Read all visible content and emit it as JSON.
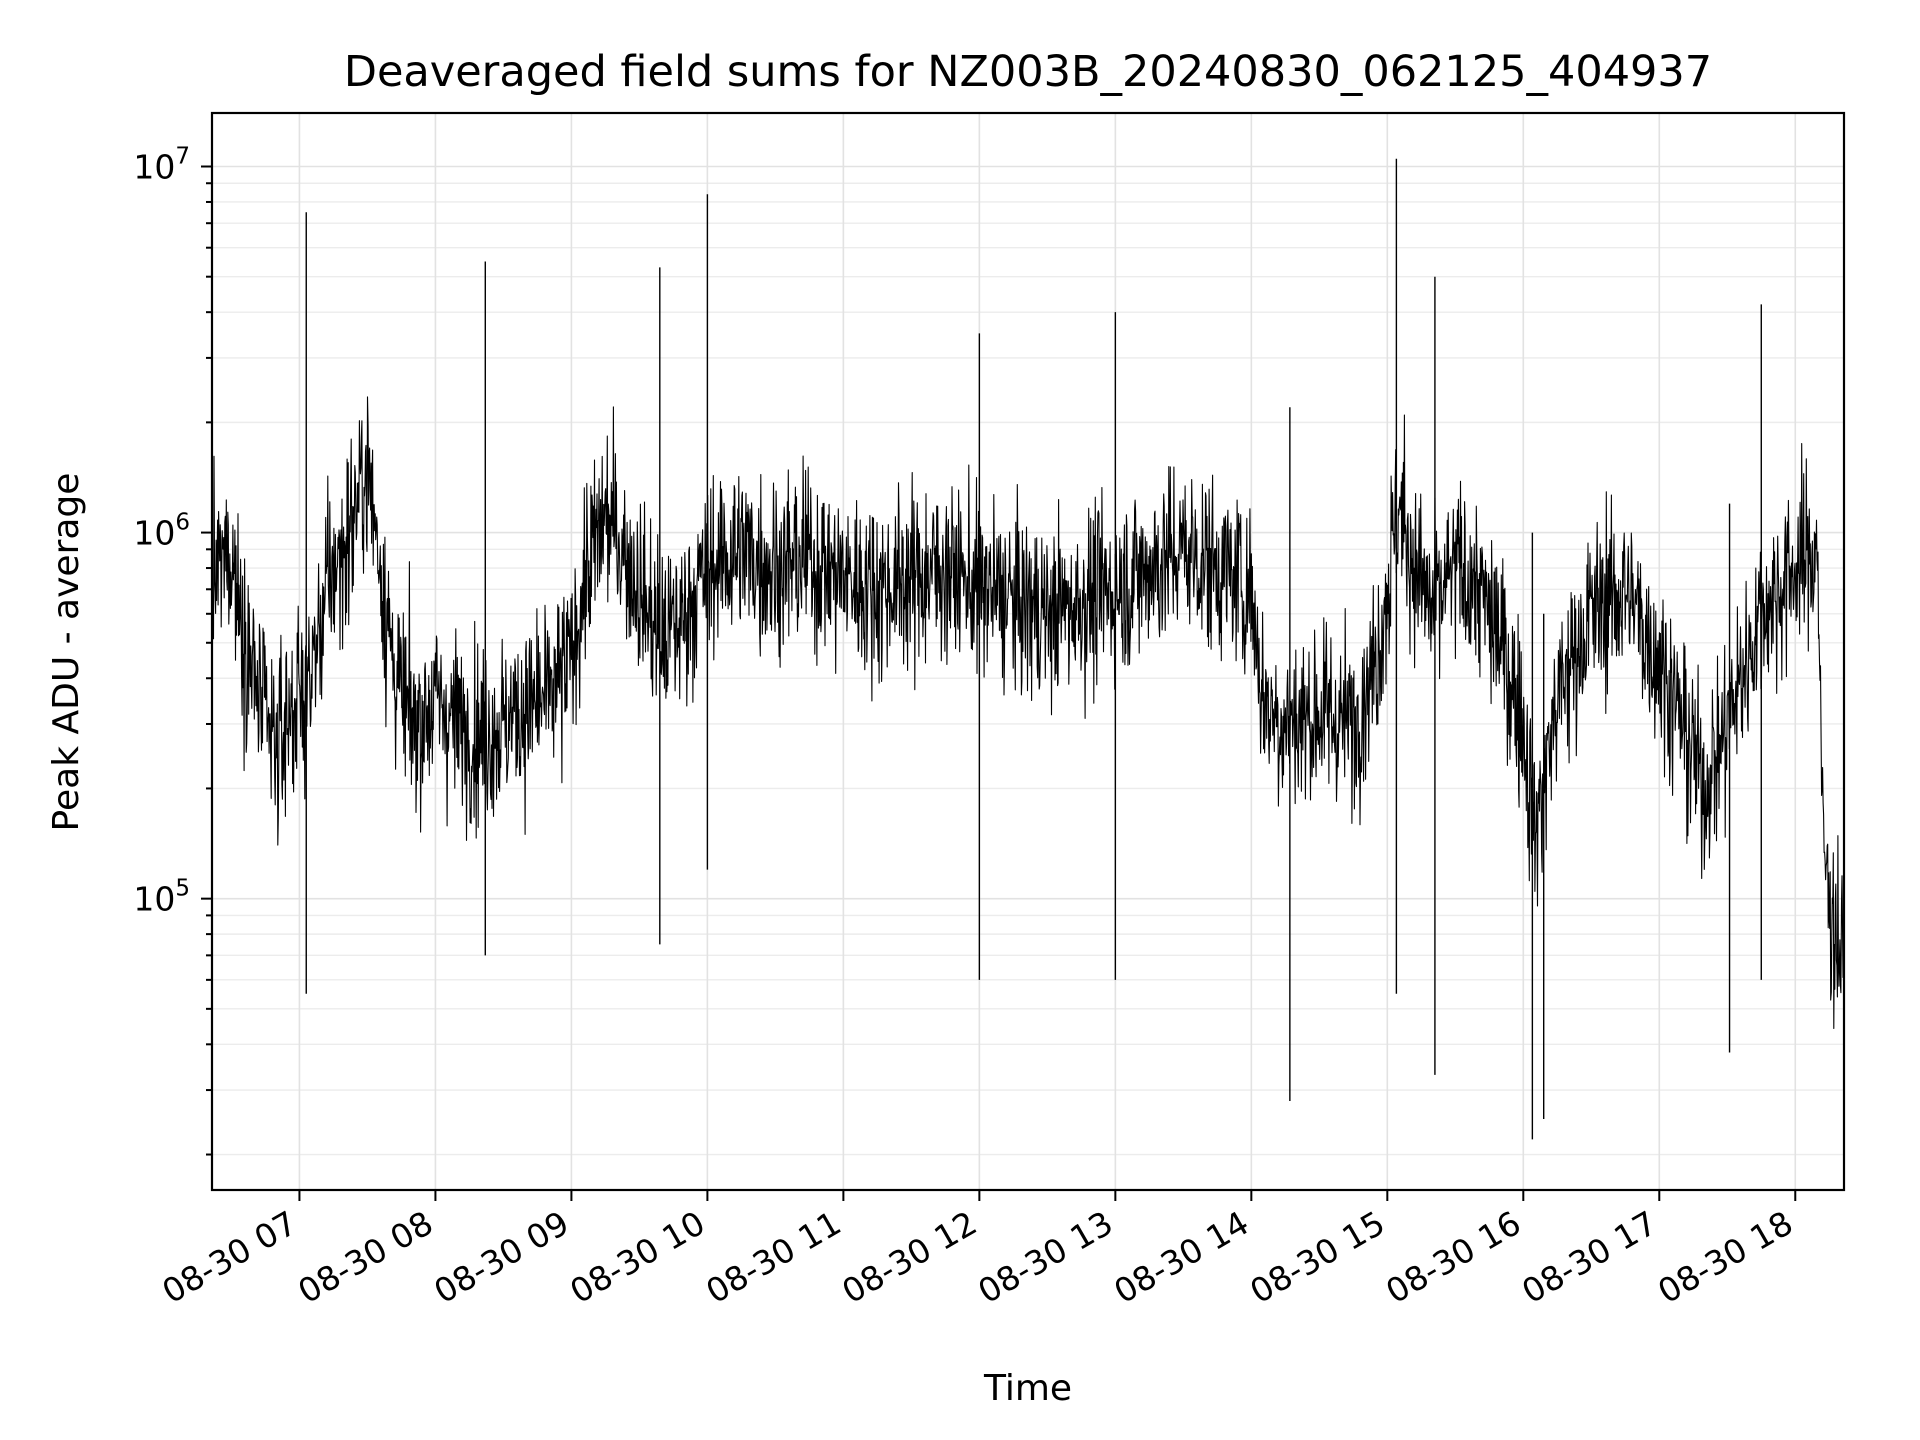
{
  "chart_data": {
    "type": "line",
    "title": "Deaveraged field sums for NZ003B_20240830_062125_404937",
    "xlabel": "Time",
    "ylabel": "Peak ADU - average",
    "x_range": [
      "2024-08-30 06:21:25",
      "2024-08-30 18:21:30"
    ],
    "ylim": [
      16000,
      14000000
    ],
    "y_scale": "log",
    "grid": true,
    "line_color": "#000000",
    "x_ticks": [
      {
        "time": "2024-08-30 07:00",
        "label": "08-30 07"
      },
      {
        "time": "2024-08-30 08:00",
        "label": "08-30 08"
      },
      {
        "time": "2024-08-30 09:00",
        "label": "08-30 09"
      },
      {
        "time": "2024-08-30 10:00",
        "label": "08-30 10"
      },
      {
        "time": "2024-08-30 11:00",
        "label": "08-30 11"
      },
      {
        "time": "2024-08-30 12:00",
        "label": "08-30 12"
      },
      {
        "time": "2024-08-30 13:00",
        "label": "08-30 13"
      },
      {
        "time": "2024-08-30 14:00",
        "label": "08-30 14"
      },
      {
        "time": "2024-08-30 15:00",
        "label": "08-30 15"
      },
      {
        "time": "2024-08-30 16:00",
        "label": "08-30 16"
      },
      {
        "time": "2024-08-30 17:00",
        "label": "08-30 17"
      },
      {
        "time": "2024-08-30 18:00",
        "label": "08-30 18"
      }
    ],
    "y_ticks": [
      {
        "value": 100000,
        "base": "10",
        "exp": "5"
      },
      {
        "value": 1000000,
        "base": "10",
        "exp": "6"
      },
      {
        "value": 10000000,
        "base": "10",
        "exp": "7"
      }
    ],
    "series": [
      {
        "values": [
          [
            "2024-08-30 06:21",
            700000
          ],
          [
            "2024-08-30 06:25",
            800000
          ],
          [
            "2024-08-30 06:30",
            900000
          ],
          [
            "2024-08-30 06:35",
            550000
          ],
          [
            "2024-08-30 06:40",
            400000
          ],
          [
            "2024-08-30 06:45",
            300000
          ],
          [
            "2024-08-30 06:50",
            250000
          ],
          [
            "2024-08-30 06:55",
            320000
          ],
          [
            "2024-08-30 07:00",
            350000
          ],
          [
            "2024-08-30 07:05",
            400000
          ],
          [
            "2024-08-30 07:10",
            600000
          ],
          [
            "2024-08-30 07:15",
            800000
          ],
          [
            "2024-08-30 07:20",
            900000
          ],
          [
            "2024-08-30 07:25",
            1200000
          ],
          [
            "2024-08-30 07:30",
            1500000
          ],
          [
            "2024-08-30 07:35",
            900000
          ],
          [
            "2024-08-30 07:40",
            500000
          ],
          [
            "2024-08-30 07:45",
            350000
          ],
          [
            "2024-08-30 07:50",
            300000
          ],
          [
            "2024-08-30 07:55",
            320000
          ],
          [
            "2024-08-30 08:00",
            350000
          ],
          [
            "2024-08-30 08:10",
            300000
          ],
          [
            "2024-08-30 08:20",
            280000
          ],
          [
            "2024-08-30 08:30",
            300000
          ],
          [
            "2024-08-30 08:40",
            330000
          ],
          [
            "2024-08-30 08:50",
            350000
          ],
          [
            "2024-08-30 09:00",
            450000
          ],
          [
            "2024-08-30 09:05",
            700000
          ],
          [
            "2024-08-30 09:10",
            900000
          ],
          [
            "2024-08-30 09:15",
            1100000
          ],
          [
            "2024-08-30 09:20",
            1000000
          ],
          [
            "2024-08-30 09:30",
            700000
          ],
          [
            "2024-08-30 09:40",
            500000
          ],
          [
            "2024-08-30 09:50",
            600000
          ],
          [
            "2024-08-30 10:00",
            800000
          ],
          [
            "2024-08-30 10:15",
            900000
          ],
          [
            "2024-08-30 10:30",
            800000
          ],
          [
            "2024-08-30 10:45",
            850000
          ],
          [
            "2024-08-30 11:00",
            750000
          ],
          [
            "2024-08-30 11:15",
            700000
          ],
          [
            "2024-08-30 11:30",
            750000
          ],
          [
            "2024-08-30 11:45",
            800000
          ],
          [
            "2024-08-30 12:00",
            700000
          ],
          [
            "2024-08-30 12:15",
            650000
          ],
          [
            "2024-08-30 12:30",
            600000
          ],
          [
            "2024-08-30 12:45",
            650000
          ],
          [
            "2024-08-30 13:00",
            700000
          ],
          [
            "2024-08-30 13:15",
            800000
          ],
          [
            "2024-08-30 13:30",
            900000
          ],
          [
            "2024-08-30 13:45",
            800000
          ],
          [
            "2024-08-30 14:00",
            700000
          ],
          [
            "2024-08-30 14:05",
            350000
          ],
          [
            "2024-08-30 14:15",
            300000
          ],
          [
            "2024-08-30 14:30",
            320000
          ],
          [
            "2024-08-30 14:45",
            300000
          ],
          [
            "2024-08-30 14:55",
            450000
          ],
          [
            "2024-08-30 15:00",
            700000
          ],
          [
            "2024-08-30 15:05",
            1200000
          ],
          [
            "2024-08-30 15:10",
            900000
          ],
          [
            "2024-08-30 15:20",
            600000
          ],
          [
            "2024-08-30 15:30",
            800000
          ],
          [
            "2024-08-30 15:40",
            700000
          ],
          [
            "2024-08-30 15:50",
            500000
          ],
          [
            "2024-08-30 16:00",
            300000
          ],
          [
            "2024-08-30 16:05",
            150000
          ],
          [
            "2024-08-30 16:15",
            350000
          ],
          [
            "2024-08-30 16:30",
            600000
          ],
          [
            "2024-08-30 16:45",
            700000
          ],
          [
            "2024-08-30 17:00",
            450000
          ],
          [
            "2024-08-30 17:10",
            300000
          ],
          [
            "2024-08-30 17:20",
            200000
          ],
          [
            "2024-08-30 17:30",
            300000
          ],
          [
            "2024-08-30 17:45",
            600000
          ],
          [
            "2024-08-30 18:00",
            800000
          ],
          [
            "2024-08-30 18:10",
            900000
          ],
          [
            "2024-08-30 18:12",
            150000
          ],
          [
            "2024-08-30 18:15",
            100000
          ],
          [
            "2024-08-30 18:20",
            70000
          ]
        ]
      }
    ],
    "annotations": [
      {
        "time": "2024-08-30 07:03",
        "peak": 7500000,
        "trough": 55000
      },
      {
        "time": "2024-08-30 08:22",
        "peak": 5500000,
        "trough": 70000
      },
      {
        "time": "2024-08-30 09:39",
        "peak": 5300000,
        "trough": 75000
      },
      {
        "time": "2024-08-30 10:00",
        "peak": 8400000,
        "trough": 120000
      },
      {
        "time": "2024-08-30 12:00",
        "peak": 3500000,
        "trough": 60000
      },
      {
        "time": "2024-08-30 13:00",
        "peak": 4000000,
        "trough": 60000
      },
      {
        "time": "2024-08-30 14:17",
        "peak": 2200000,
        "trough": 28000
      },
      {
        "time": "2024-08-30 15:04",
        "peak": 10500000,
        "trough": 55000
      },
      {
        "time": "2024-08-30 15:21",
        "peak": 5000000,
        "trough": 33000
      },
      {
        "time": "2024-08-30 16:04",
        "peak": 1000000,
        "trough": 22000
      },
      {
        "time": "2024-08-30 16:09",
        "peak": 600000,
        "trough": 25000
      },
      {
        "time": "2024-08-30 17:31",
        "peak": 1200000,
        "trough": 38000
      },
      {
        "time": "2024-08-30 17:45",
        "peak": 4200000,
        "trough": 60000
      }
    ]
  }
}
